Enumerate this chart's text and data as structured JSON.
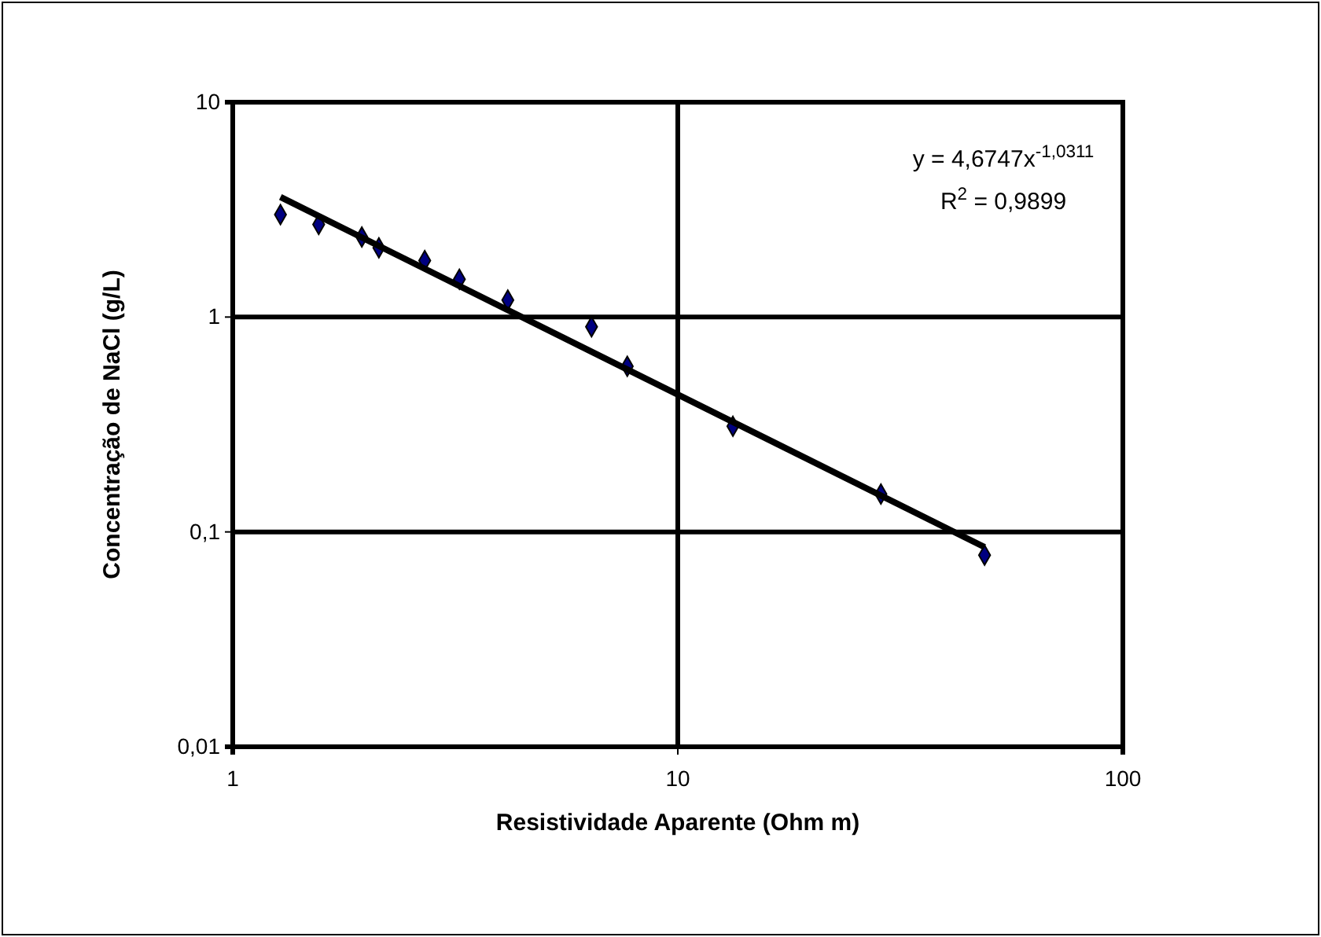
{
  "chart_data": {
    "type": "scatter",
    "xlabel": "Resistividade Aparente (Ohm m)",
    "ylabel": "Concentração de NaCl (g/L)",
    "log": "xy",
    "grid": true,
    "xlim": [
      1,
      100
    ],
    "xticks": [
      1,
      10,
      100
    ],
    "ylim": [
      0.01,
      10
    ],
    "yticks": [
      {
        "value": 0.01,
        "label": "0,01"
      },
      {
        "value": 0.1,
        "label": "0,1"
      },
      1,
      10
    ],
    "annotations": [
      "y = 4,6747x$^{-1,0311}$",
      "R$^{2}$ = 0,9899"
    ],
    "series": [
      {
        "marker": "diamond",
        "color": "#000080",
        "x": [
          1.28,
          1.56,
          1.95,
          2.13,
          2.7,
          3.23,
          4.15,
          6.4,
          7.7,
          13.3,
          28.6,
          48.9
        ],
        "values": [
          3.0,
          2.7,
          2.36,
          2.1,
          1.83,
          1.5,
          1.2,
          0.9,
          0.59,
          0.31,
          0.15,
          0.078
        ]
      },
      {
        "type": "line",
        "color": "#000000",
        "x": [
          1.28,
          48.9
        ],
        "values": [
          3.62,
          0.085
        ]
      }
    ]
  }
}
